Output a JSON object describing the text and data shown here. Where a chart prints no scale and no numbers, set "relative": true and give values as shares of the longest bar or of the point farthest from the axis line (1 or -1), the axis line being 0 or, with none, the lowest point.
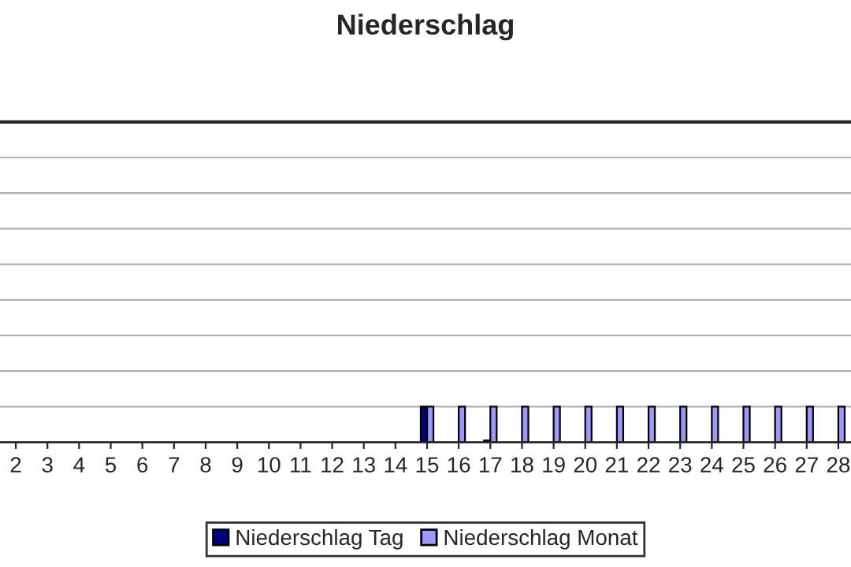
{
  "chart_data": {
    "type": "bar",
    "title": "Niederschlag",
    "relative": true,
    "grid": "y",
    "legend": "bottom",
    "categories": [
      "2",
      "3",
      "4",
      "5",
      "6",
      "7",
      "8",
      "9",
      "10",
      "11",
      "12",
      "13",
      "14",
      "15",
      "16",
      "17",
      "18",
      "19",
      "20",
      "21",
      "22",
      "23",
      "24",
      "25",
      "26",
      "27",
      "28"
    ],
    "series": [
      {
        "name": "Niederschlag Tag",
        "color": "#000080",
        "values": [
          null,
          null,
          null,
          null,
          null,
          null,
          null,
          null,
          null,
          null,
          null,
          null,
          null,
          1,
          null,
          0.05,
          null,
          null,
          null,
          null,
          null,
          null,
          null,
          null,
          null,
          null,
          null
        ]
      },
      {
        "name": "Niederschlag Monat",
        "color": "#9999ff",
        "values": [
          null,
          null,
          null,
          null,
          null,
          null,
          null,
          null,
          null,
          null,
          null,
          null,
          null,
          1,
          1,
          1,
          1,
          1,
          1,
          1,
          1,
          1,
          1,
          1,
          1,
          1,
          1
        ]
      }
    ]
  }
}
